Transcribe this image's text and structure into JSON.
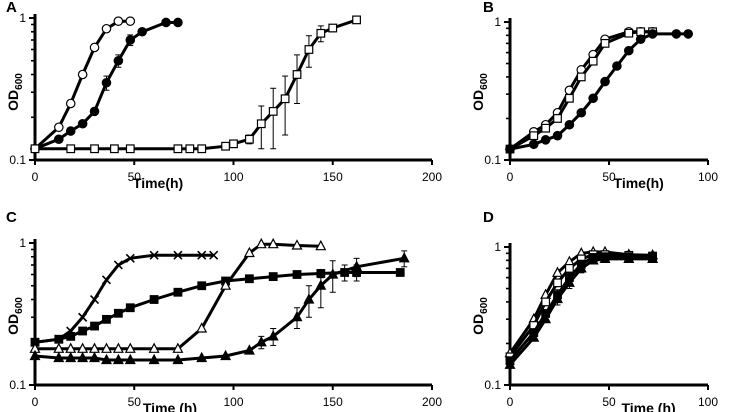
{
  "chart_data": [
    {
      "panel": "A",
      "type": "line",
      "y_scale": "log",
      "ylim": [
        0.1,
        1
      ],
      "xlim": [
        0,
        200
      ],
      "xlabel": "Time(h)",
      "ylabel": {
        "main": "OD",
        "sub": "600"
      },
      "x_ticks": [
        0,
        50,
        100,
        150,
        200
      ],
      "y_ticks": [
        {
          "v": 0.1,
          "label": "0.1"
        },
        {
          "v": 1,
          "label": "1"
        }
      ],
      "series": [
        {
          "name": "open-circle",
          "marker": "circle",
          "fill": "white",
          "x": [
            0,
            12,
            18,
            24,
            30,
            36,
            42,
            48
          ],
          "y": [
            0.12,
            0.17,
            0.25,
            0.4,
            0.62,
            0.84,
            0.95,
            0.95
          ],
          "err": []
        },
        {
          "name": "filled-circle",
          "marker": "circle",
          "fill": "black",
          "x": [
            0,
            12,
            18,
            24,
            30,
            36,
            42,
            48,
            54,
            66,
            72
          ],
          "y": [
            0.12,
            0.14,
            0.16,
            0.18,
            0.22,
            0.35,
            0.5,
            0.7,
            0.8,
            0.93,
            0.93
          ],
          "err": [
            0,
            0,
            0,
            0,
            0,
            0.04,
            0.05,
            0.06,
            0,
            0,
            0
          ]
        },
        {
          "name": "open-square",
          "marker": "square",
          "fill": "white",
          "x": [
            0,
            18,
            30,
            40,
            48,
            72,
            78,
            84,
            96,
            100,
            108,
            114,
            120,
            126,
            132,
            138,
            144,
            150,
            162
          ],
          "y": [
            0.12,
            0.12,
            0.12,
            0.12,
            0.12,
            0.12,
            0.12,
            0.12,
            0.125,
            0.13,
            0.14,
            0.18,
            0.22,
            0.27,
            0.4,
            0.6,
            0.78,
            0.85,
            0.97
          ],
          "err": [
            0,
            0,
            0,
            0,
            0,
            0,
            0,
            0,
            0,
            0,
            0.01,
            0.06,
            0.1,
            0.12,
            0.15,
            0.15,
            0.1,
            0.05,
            0
          ]
        }
      ]
    },
    {
      "panel": "B",
      "type": "line",
      "y_scale": "log",
      "ylim": [
        0.1,
        1
      ],
      "xlim": [
        0,
        100
      ],
      "xlabel": "Time(h)",
      "ylabel": {
        "main": "OD",
        "sub": "600"
      },
      "x_ticks": [
        0,
        50,
        100
      ],
      "y_ticks": [
        {
          "v": 0.1,
          "label": "0.1"
        },
        {
          "v": 1,
          "label": "1"
        }
      ],
      "series": [
        {
          "name": "open-circle",
          "marker": "circle",
          "fill": "white",
          "x": [
            0,
            12,
            18,
            24,
            30,
            36,
            42,
            48,
            60,
            66,
            72
          ],
          "y": [
            0.12,
            0.16,
            0.18,
            0.22,
            0.32,
            0.45,
            0.58,
            0.75,
            0.85,
            0.85,
            0.85
          ],
          "err": []
        },
        {
          "name": "open-square",
          "marker": "square",
          "fill": "white",
          "x": [
            0,
            12,
            18,
            24,
            30,
            36,
            42,
            48,
            60,
            66,
            72
          ],
          "y": [
            0.12,
            0.15,
            0.17,
            0.2,
            0.28,
            0.4,
            0.52,
            0.7,
            0.83,
            0.85,
            0.85
          ],
          "err": []
        },
        {
          "name": "filled-circle",
          "marker": "circle",
          "fill": "black",
          "x": [
            0,
            12,
            18,
            24,
            30,
            36,
            42,
            48,
            54,
            60,
            66,
            72,
            84,
            90
          ],
          "y": [
            0.12,
            0.13,
            0.14,
            0.15,
            0.18,
            0.22,
            0.28,
            0.37,
            0.48,
            0.62,
            0.75,
            0.82,
            0.82,
            0.82
          ],
          "err": []
        }
      ]
    },
    {
      "panel": "C",
      "type": "line",
      "y_scale": "log",
      "ylim": [
        0.1,
        1
      ],
      "xlim": [
        0,
        200
      ],
      "xlabel": "Time (h)",
      "ylabel": {
        "main": "OD",
        "sub": "600"
      },
      "x_ticks": [
        0,
        50,
        100,
        150,
        200
      ],
      "y_ticks": [
        {
          "v": 0.1,
          "label": "0.1"
        },
        {
          "v": 1,
          "label": "1"
        }
      ],
      "series": [
        {
          "name": "cross",
          "marker": "cross",
          "fill": "black",
          "x": [
            0,
            12,
            18,
            24,
            30,
            36,
            42,
            48,
            60,
            72,
            84,
            90
          ],
          "y": [
            0.2,
            0.21,
            0.24,
            0.3,
            0.4,
            0.55,
            0.7,
            0.78,
            0.82,
            0.82,
            0.82,
            0.82
          ],
          "err": []
        },
        {
          "name": "filled-square",
          "marker": "square",
          "fill": "black",
          "x": [
            0,
            12,
            18,
            24,
            30,
            36,
            42,
            48,
            60,
            72,
            84,
            96,
            108,
            120,
            132,
            144,
            156,
            162,
            184
          ],
          "y": [
            0.2,
            0.21,
            0.22,
            0.24,
            0.26,
            0.29,
            0.32,
            0.35,
            0.4,
            0.45,
            0.5,
            0.54,
            0.56,
            0.58,
            0.6,
            0.61,
            0.62,
            0.62,
            0.62
          ],
          "err": [
            0,
            0,
            0,
            0,
            0,
            0,
            0,
            0,
            0,
            0,
            0,
            0,
            0,
            0,
            0,
            0.04,
            0.08,
            0.08,
            0
          ]
        },
        {
          "name": "open-triangle",
          "marker": "triangle",
          "fill": "white",
          "x": [
            0,
            12,
            18,
            24,
            30,
            36,
            42,
            48,
            60,
            72,
            84,
            96,
            108,
            114,
            120,
            132,
            144
          ],
          "y": [
            0.18,
            0.18,
            0.18,
            0.18,
            0.18,
            0.18,
            0.18,
            0.18,
            0.18,
            0.18,
            0.25,
            0.5,
            0.85,
            0.98,
            0.98,
            0.96,
            0.95
          ],
          "err": []
        },
        {
          "name": "filled-triangle",
          "marker": "triangle",
          "fill": "black",
          "x": [
            0,
            12,
            18,
            24,
            30,
            36,
            42,
            48,
            60,
            72,
            84,
            96,
            108,
            114,
            120,
            132,
            138,
            144,
            150,
            162,
            186
          ],
          "y": [
            0.16,
            0.155,
            0.155,
            0.155,
            0.155,
            0.15,
            0.15,
            0.15,
            0.15,
            0.15,
            0.155,
            0.16,
            0.175,
            0.2,
            0.22,
            0.3,
            0.4,
            0.5,
            0.6,
            0.68,
            0.78
          ],
          "err": [
            0,
            0,
            0,
            0,
            0,
            0,
            0,
            0,
            0,
            0,
            0,
            0,
            0,
            0.02,
            0.03,
            0.05,
            0.1,
            0.15,
            0.15,
            0.1,
            0.1
          ]
        }
      ]
    },
    {
      "panel": "D",
      "type": "line",
      "y_scale": "log",
      "ylim": [
        0.1,
        1
      ],
      "xlim": [
        0,
        100
      ],
      "xlabel": "Time (h)",
      "ylabel": {
        "main": "OD",
        "sub": "600"
      },
      "x_ticks": [
        0,
        50,
        100
      ],
      "y_ticks": [
        {
          "v": 0.1,
          "label": "0.1"
        },
        {
          "v": 1,
          "label": "1"
        }
      ],
      "series": [
        {
          "name": "open-triangle",
          "marker": "triangle",
          "fill": "white",
          "x": [
            0,
            12,
            18,
            24,
            30,
            36,
            42,
            48,
            60,
            72
          ],
          "y": [
            0.17,
            0.3,
            0.45,
            0.65,
            0.78,
            0.9,
            0.92,
            0.92,
            0.88,
            0.87
          ],
          "err": []
        },
        {
          "name": "open-square",
          "marker": "square",
          "fill": "white",
          "x": [
            0,
            12,
            18,
            24,
            30,
            36,
            42,
            48,
            60,
            72
          ],
          "y": [
            0.16,
            0.27,
            0.4,
            0.55,
            0.7,
            0.82,
            0.88,
            0.88,
            0.87,
            0.86
          ],
          "err": []
        },
        {
          "name": "filled-square",
          "marker": "square",
          "fill": "black",
          "x": [
            0,
            12,
            18,
            24,
            30,
            36,
            42,
            48,
            60,
            72
          ],
          "y": [
            0.15,
            0.24,
            0.33,
            0.45,
            0.6,
            0.75,
            0.84,
            0.85,
            0.85,
            0.85
          ],
          "err": [
            0,
            0,
            0,
            0.04,
            0.05,
            0.05,
            0.04,
            0.04,
            0.04,
            0.04
          ]
        },
        {
          "name": "filled-triangle",
          "marker": "triangle",
          "fill": "black",
          "x": [
            0,
            12,
            18,
            24,
            30,
            36,
            42,
            48,
            60,
            72
          ],
          "y": [
            0.14,
            0.22,
            0.3,
            0.42,
            0.55,
            0.7,
            0.8,
            0.82,
            0.82,
            0.82
          ],
          "err": [
            0,
            0,
            0,
            0.04,
            0.05,
            0.05,
            0.04,
            0.04,
            0.04,
            0.04
          ]
        }
      ]
    }
  ]
}
